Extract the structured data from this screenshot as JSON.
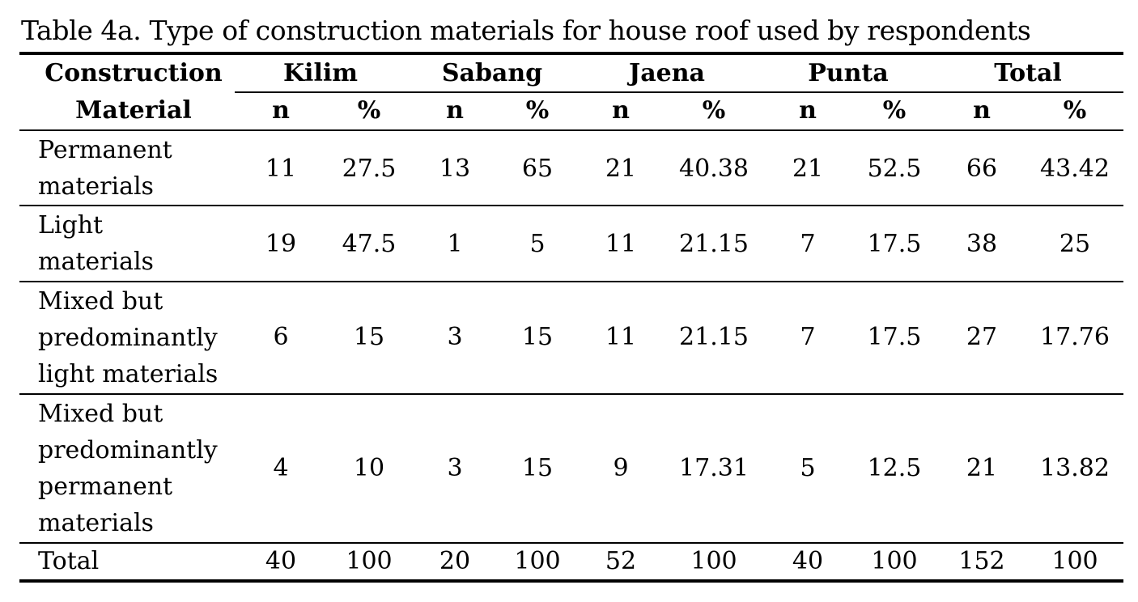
{
  "caption": "Table 4a. Type of construction materials for house roof used by respondents",
  "header": {
    "first_col_line1": "Construction",
    "first_col_line2": "Material",
    "groups": [
      "Kilim",
      "Sabang",
      "Jaena",
      "Punta",
      "Total"
    ],
    "subheaders": [
      "n",
      "%",
      "n",
      "%",
      "n",
      "%",
      "n",
      "%",
      "n",
      "%"
    ]
  },
  "rows": [
    {
      "label": "Permanent\nmaterials",
      "values": [
        "11",
        "27.5",
        "13",
        "65",
        "21",
        "40.38",
        "21",
        "52.5",
        "66",
        "43.42"
      ]
    },
    {
      "label": "Light\nmaterials",
      "values": [
        "19",
        "47.5",
        "1",
        "5",
        "11",
        "21.15",
        "7",
        "17.5",
        "38",
        "25"
      ]
    },
    {
      "label": "Mixed but\npredominantly\nlight materials",
      "values": [
        "6",
        "15",
        "3",
        "15",
        "11",
        "21.15",
        "7",
        "17.5",
        "27",
        "17.76"
      ]
    },
    {
      "label": "Mixed but\npredominantly\npermanent\nmaterials",
      "values": [
        "4",
        "10",
        "3",
        "15",
        "9",
        "17.31",
        "5",
        "12.5",
        "21",
        "13.82"
      ]
    },
    {
      "label": "Total",
      "values": [
        "40",
        "100",
        "20",
        "100",
        "52",
        "100",
        "40",
        "100",
        "152",
        "100"
      ]
    }
  ]
}
